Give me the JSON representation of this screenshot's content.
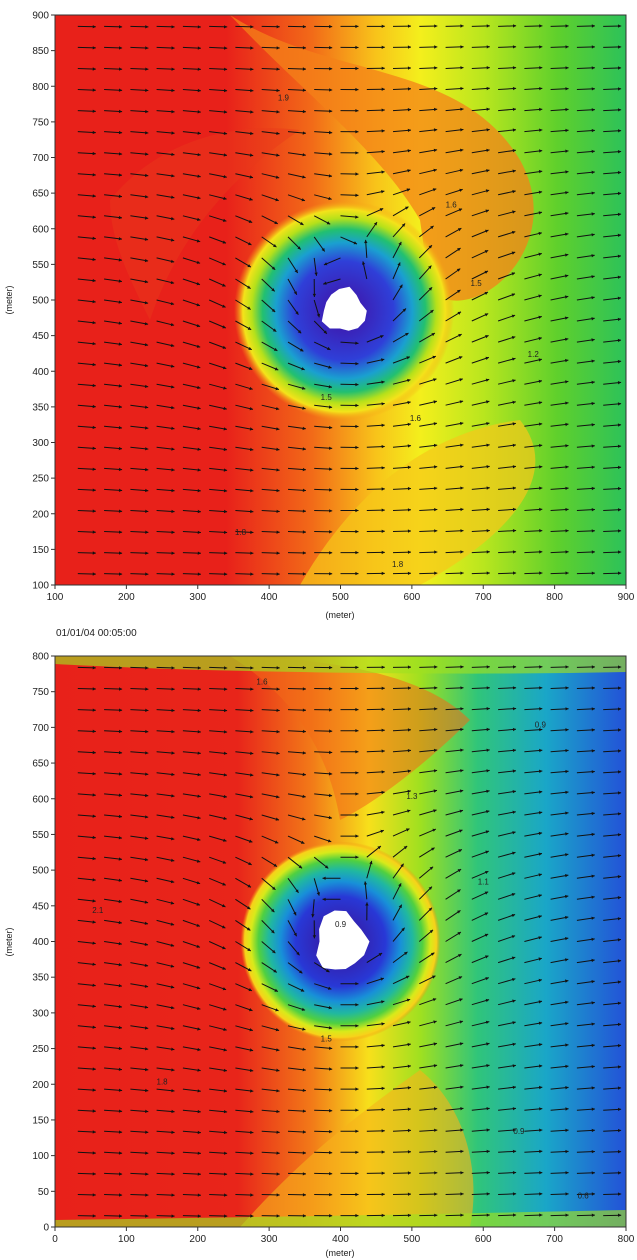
{
  "chart_data": [
    {
      "type": "heatmap",
      "subtype": "filled-contour with velocity vectors",
      "title": "",
      "xlabel": "(meter)",
      "ylabel": "(meter)",
      "xlim": [
        100,
        900
      ],
      "ylim": [
        100,
        900
      ],
      "xticks": [
        100,
        200,
        300,
        400,
        500,
        600,
        700,
        800,
        900
      ],
      "yticks": [
        100,
        150,
        200,
        250,
        300,
        350,
        400,
        450,
        500,
        550,
        600,
        650,
        700,
        750,
        800,
        850,
        900
      ],
      "obstacle_center": [
        505,
        485
      ],
      "obstacle_radius": 30,
      "inflow": "left",
      "contour_labels": [
        {
          "text": "1.6",
          "x": 655,
          "y": 630
        },
        {
          "text": "1.5",
          "x": 690,
          "y": 520
        },
        {
          "text": "1.6",
          "x": 605,
          "y": 330
        },
        {
          "text": "1.8",
          "x": 580,
          "y": 125
        },
        {
          "text": "1.8",
          "x": 360,
          "y": 170
        },
        {
          "text": "1.2",
          "x": 770,
          "y": 420
        },
        {
          "text": "1.9",
          "x": 420,
          "y": 780
        },
        {
          "text": "1.5",
          "x": 480,
          "y": 360
        }
      ],
      "grid": false,
      "legend": "none"
    },
    {
      "type": "heatmap",
      "subtype": "filled-contour with velocity vectors",
      "timestamp": "01/01/04 00:05:00",
      "title": "",
      "xlabel": "(meter)",
      "ylabel": "(meter)",
      "xlim": [
        0,
        800
      ],
      "ylim": [
        0,
        800
      ],
      "xticks": [
        0,
        100,
        200,
        300,
        400,
        500,
        600,
        700,
        800
      ],
      "yticks": [
        0,
        50,
        100,
        150,
        200,
        250,
        300,
        350,
        400,
        450,
        500,
        550,
        600,
        650,
        700,
        750,
        800
      ],
      "obstacle_center": [
        400,
        400
      ],
      "obstacle_radius": 35,
      "inflow": "left",
      "contour_labels": [
        {
          "text": "1.5",
          "x": 380,
          "y": 260
        },
        {
          "text": "0.9",
          "x": 680,
          "y": 700
        },
        {
          "text": "1.3",
          "x": 500,
          "y": 600
        },
        {
          "text": "1.1",
          "x": 600,
          "y": 480
        },
        {
          "text": "0.9",
          "x": 650,
          "y": 130
        },
        {
          "text": "0.6",
          "x": 740,
          "y": 40
        },
        {
          "text": "1.6",
          "x": 290,
          "y": 760
        },
        {
          "text": "2.1",
          "x": 60,
          "y": 440
        },
        {
          "text": "1.8",
          "x": 150,
          "y": 200
        },
        {
          "text": "0.9",
          "x": 400,
          "y": 420
        }
      ],
      "grid": false,
      "legend": "none"
    }
  ]
}
